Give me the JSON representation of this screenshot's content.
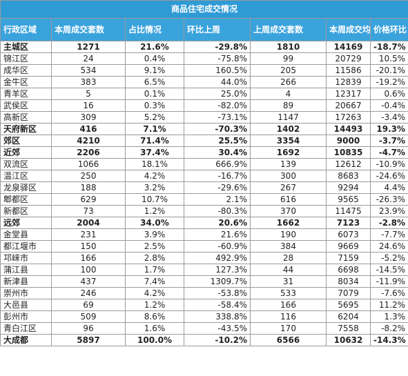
{
  "title": "商品住宅成交情况",
  "headers": [
    "行政区域",
    "本周成交套数",
    "占比情况",
    "环比上周",
    "上周成交套数",
    "本周成交均价",
    "价格环比"
  ],
  "rows": [
    {
      "region": "主城区",
      "units": "1271",
      "share": "21.6%",
      "wow": "-29.8%",
      "last_units": "1810",
      "avg_price": "14169",
      "price_wow": "-18.7%",
      "highlight": true
    },
    {
      "region": "锦江区",
      "units": "24",
      "share": "0.4%",
      "wow": "-75.8%",
      "last_units": "99",
      "avg_price": "20729",
      "price_wow": "10.5%",
      "highlight": false
    },
    {
      "region": "成华区",
      "units": "534",
      "share": "9.1%",
      "wow": "160.5%",
      "last_units": "205",
      "avg_price": "11586",
      "price_wow": "-20.1%",
      "highlight": false
    },
    {
      "region": "金牛区",
      "units": "383",
      "share": "6.5%",
      "wow": "44.0%",
      "last_units": "266",
      "avg_price": "12839",
      "price_wow": "-19.2%",
      "highlight": false
    },
    {
      "region": "青羊区",
      "units": "5",
      "share": "0.1%",
      "wow": "25.0%",
      "last_units": "4",
      "avg_price": "12317",
      "price_wow": "0.6%",
      "highlight": false
    },
    {
      "region": "武侯区",
      "units": "16",
      "share": "0.3%",
      "wow": "-82.0%",
      "last_units": "89",
      "avg_price": "20667",
      "price_wow": "-0.4%",
      "highlight": false
    },
    {
      "region": "高新区",
      "units": "309",
      "share": "5.2%",
      "wow": "-73.1%",
      "last_units": "1147",
      "avg_price": "17263",
      "price_wow": "-3.4%",
      "highlight": false
    },
    {
      "region": "天府新区",
      "units": "416",
      "share": "7.1%",
      "wow": "-70.3%",
      "last_units": "1402",
      "avg_price": "14493",
      "price_wow": "19.3%",
      "highlight": true
    },
    {
      "region": "郊区",
      "units": "4210",
      "share": "71.4%",
      "wow": "25.5%",
      "last_units": "3354",
      "avg_price": "9000",
      "price_wow": "-3.7%",
      "highlight": true
    },
    {
      "region": "近郊",
      "units": "2206",
      "share": "37.4%",
      "wow": "30.4%",
      "last_units": "1692",
      "avg_price": "10835",
      "price_wow": "-4.7%",
      "highlight": true
    },
    {
      "region": "双流区",
      "units": "1066",
      "share": "18.1%",
      "wow": "666.9%",
      "last_units": "139",
      "avg_price": "12612",
      "price_wow": "-10.9%",
      "highlight": false
    },
    {
      "region": "温江区",
      "units": "250",
      "share": "4.2%",
      "wow": "-16.7%",
      "last_units": "300",
      "avg_price": "8683",
      "price_wow": "-24.6%",
      "highlight": false
    },
    {
      "region": "龙泉驿区",
      "units": "188",
      "share": "3.2%",
      "wow": "-29.6%",
      "last_units": "267",
      "avg_price": "9294",
      "price_wow": "4.4%",
      "highlight": false
    },
    {
      "region": "郫都区",
      "units": "629",
      "share": "10.7%",
      "wow": "2.1%",
      "last_units": "616",
      "avg_price": "9565",
      "price_wow": "-26.3%",
      "highlight": false
    },
    {
      "region": "新都区",
      "units": "73",
      "share": "1.2%",
      "wow": "-80.3%",
      "last_units": "370",
      "avg_price": "11475",
      "price_wow": "23.9%",
      "highlight": false
    },
    {
      "region": "远郊",
      "units": "2004",
      "share": "34.0%",
      "wow": "20.6%",
      "last_units": "1662",
      "avg_price": "7123",
      "price_wow": "-2.8%",
      "highlight": true
    },
    {
      "region": "金堂县",
      "units": "231",
      "share": "3.9%",
      "wow": "21.6%",
      "last_units": "190",
      "avg_price": "6073",
      "price_wow": "-7.7%",
      "highlight": false
    },
    {
      "region": "都江堰市",
      "units": "150",
      "share": "2.5%",
      "wow": "-60.9%",
      "last_units": "384",
      "avg_price": "9669",
      "price_wow": "24.6%",
      "highlight": false
    },
    {
      "region": "邛崃市",
      "units": "166",
      "share": "2.8%",
      "wow": "492.9%",
      "last_units": "28",
      "avg_price": "7159",
      "price_wow": "-5.2%",
      "highlight": false
    },
    {
      "region": "蒲江县",
      "units": "100",
      "share": "1.7%",
      "wow": "127.3%",
      "last_units": "44",
      "avg_price": "6698",
      "price_wow": "-14.5%",
      "highlight": false
    },
    {
      "region": "新津县",
      "units": "437",
      "share": "7.4%",
      "wow": "1309.7%",
      "last_units": "31",
      "avg_price": "8034",
      "price_wow": "-11.9%",
      "highlight": false
    },
    {
      "region": "崇州市",
      "units": "246",
      "share": "4.2%",
      "wow": "-53.8%",
      "last_units": "533",
      "avg_price": "7079",
      "price_wow": "-7.6%",
      "highlight": false
    },
    {
      "region": "大邑县",
      "units": "69",
      "share": "1.2%",
      "wow": "-58.4%",
      "last_units": "166",
      "avg_price": "5695",
      "price_wow": "11.2%",
      "highlight": false
    },
    {
      "region": "彭州市",
      "units": "509",
      "share": "8.6%",
      "wow": "338.8%",
      "last_units": "116",
      "avg_price": "6204",
      "price_wow": "1.3%",
      "highlight": false
    },
    {
      "region": "青白江区",
      "units": "96",
      "share": "1.6%",
      "wow": "-43.5%",
      "last_units": "170",
      "avg_price": "7558",
      "price_wow": "-8.2%",
      "highlight": false
    },
    {
      "region": "大成都",
      "units": "5897",
      "share": "100.0%",
      "wow": "-10.2%",
      "last_units": "6566",
      "avg_price": "10632",
      "price_wow": "-14.3%",
      "highlight": true
    }
  ]
}
